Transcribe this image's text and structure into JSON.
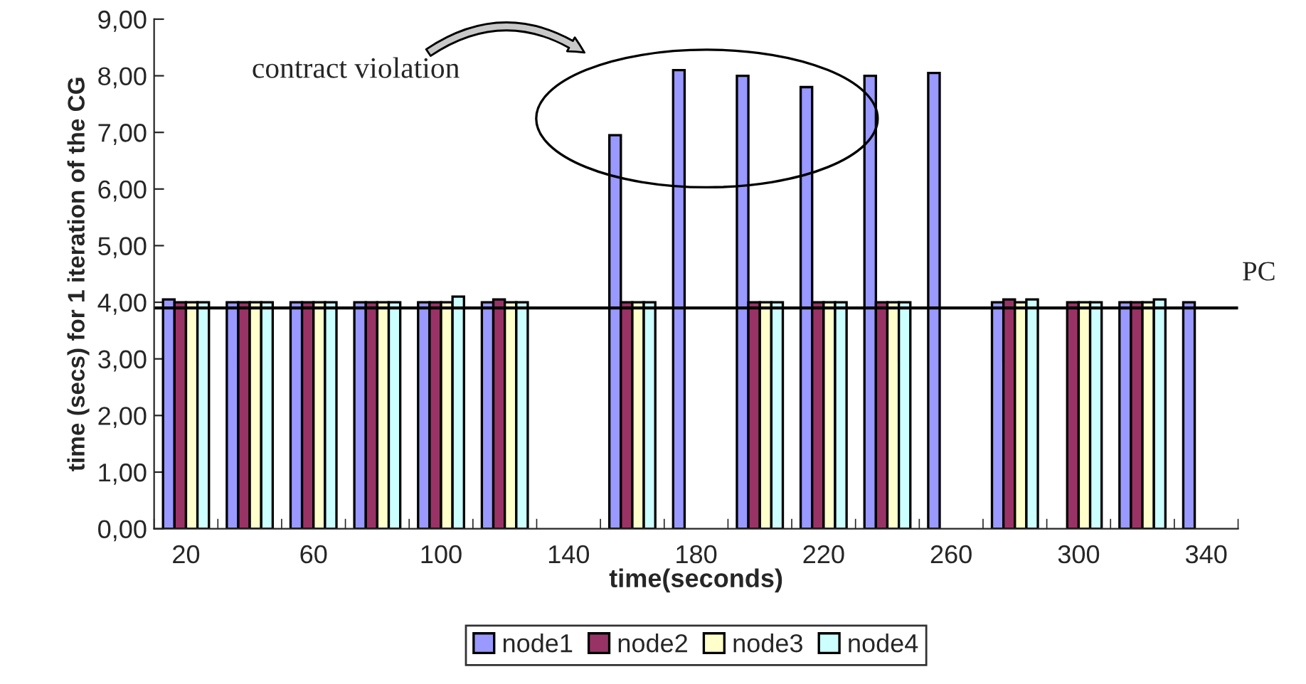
{
  "chart_data": {
    "type": "bar",
    "xlabel": "time(seconds)",
    "ylabel": "time (secs) for 1 iteration of the CG",
    "categories": [
      "20",
      null,
      "60",
      null,
      "100",
      null,
      "140",
      null,
      "180",
      null,
      "220",
      null,
      "260",
      null,
      "300",
      null,
      "340"
    ],
    "series": [
      {
        "name": "node1",
        "color": "#9999ff",
        "values": [
          4.05,
          4,
          4,
          4,
          4,
          4,
          null,
          6.95,
          8.1,
          8.0,
          7.8,
          8.0,
          8.05,
          4,
          null,
          4,
          4
        ]
      },
      {
        "name": "node2",
        "color": "#993366",
        "values": [
          4,
          4,
          4,
          4,
          4,
          4.05,
          null,
          4,
          null,
          4,
          4,
          4,
          null,
          4.05,
          4,
          4,
          null
        ]
      },
      {
        "name": "node3",
        "color": "#ffffcc",
        "values": [
          4,
          4,
          4,
          4,
          4,
          4,
          null,
          4,
          null,
          4,
          4,
          4,
          null,
          4,
          4,
          4,
          null
        ]
      },
      {
        "name": "node4",
        "color": "#ccffff",
        "values": [
          4,
          4,
          4,
          4,
          4.1,
          4,
          null,
          4,
          null,
          4,
          4,
          4,
          null,
          4.05,
          4,
          4.05,
          null
        ]
      }
    ],
    "ylim": [
      0,
      9
    ],
    "yticks": [
      {
        "value": 0,
        "label": "0,00"
      },
      {
        "value": 1,
        "label": "1,00"
      },
      {
        "value": 2,
        "label": "2,00"
      },
      {
        "value": 3,
        "label": "3,00"
      },
      {
        "value": 4,
        "label": "4,00"
      },
      {
        "value": 5,
        "label": "5,00"
      },
      {
        "value": 6,
        "label": "6,00"
      },
      {
        "value": 7,
        "label": "7,00"
      },
      {
        "value": 8,
        "label": "8,00"
      },
      {
        "value": 9,
        "label": "9,00"
      }
    ],
    "ref_lines": [
      {
        "axis": "y",
        "value": 3.9,
        "label": "PC",
        "color": "#000000"
      }
    ],
    "annotations": [
      "contract violation"
    ],
    "grid": false,
    "legend": "bottom"
  }
}
